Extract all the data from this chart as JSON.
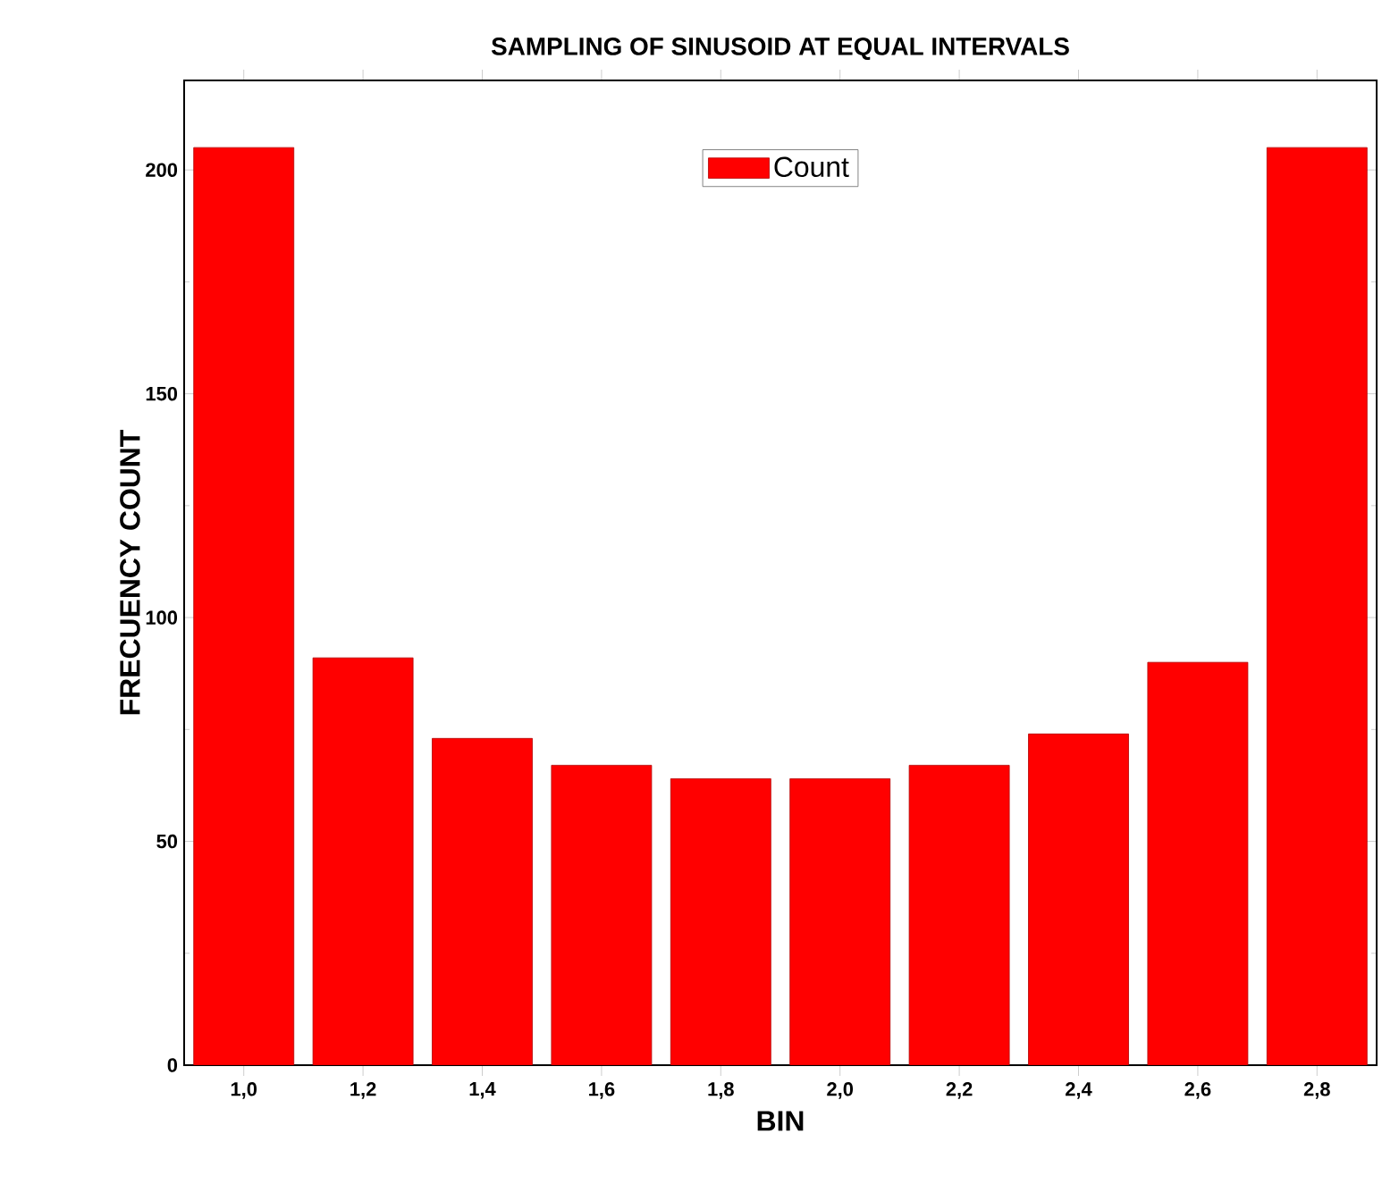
{
  "chart_data": {
    "type": "bar",
    "title": "SAMPLING OF SINUSOID AT EQUAL INTERVALS",
    "xlabel": "BIN",
    "ylabel": "FRECUENCY COUNT",
    "categories": [
      "1,0",
      "1,2",
      "1,4",
      "1,6",
      "1,8",
      "2,0",
      "2,2",
      "2,4",
      "2,6",
      "2,8"
    ],
    "series": [
      {
        "name": "Count",
        "color": "#ff0000",
        "values": [
          205,
          91,
          73,
          67,
          64,
          64,
          67,
          74,
          90,
          205
        ]
      }
    ],
    "ylim": [
      0,
      220
    ],
    "yticks": [
      0,
      50,
      100,
      150,
      200
    ],
    "legend": "top",
    "grid": false
  }
}
